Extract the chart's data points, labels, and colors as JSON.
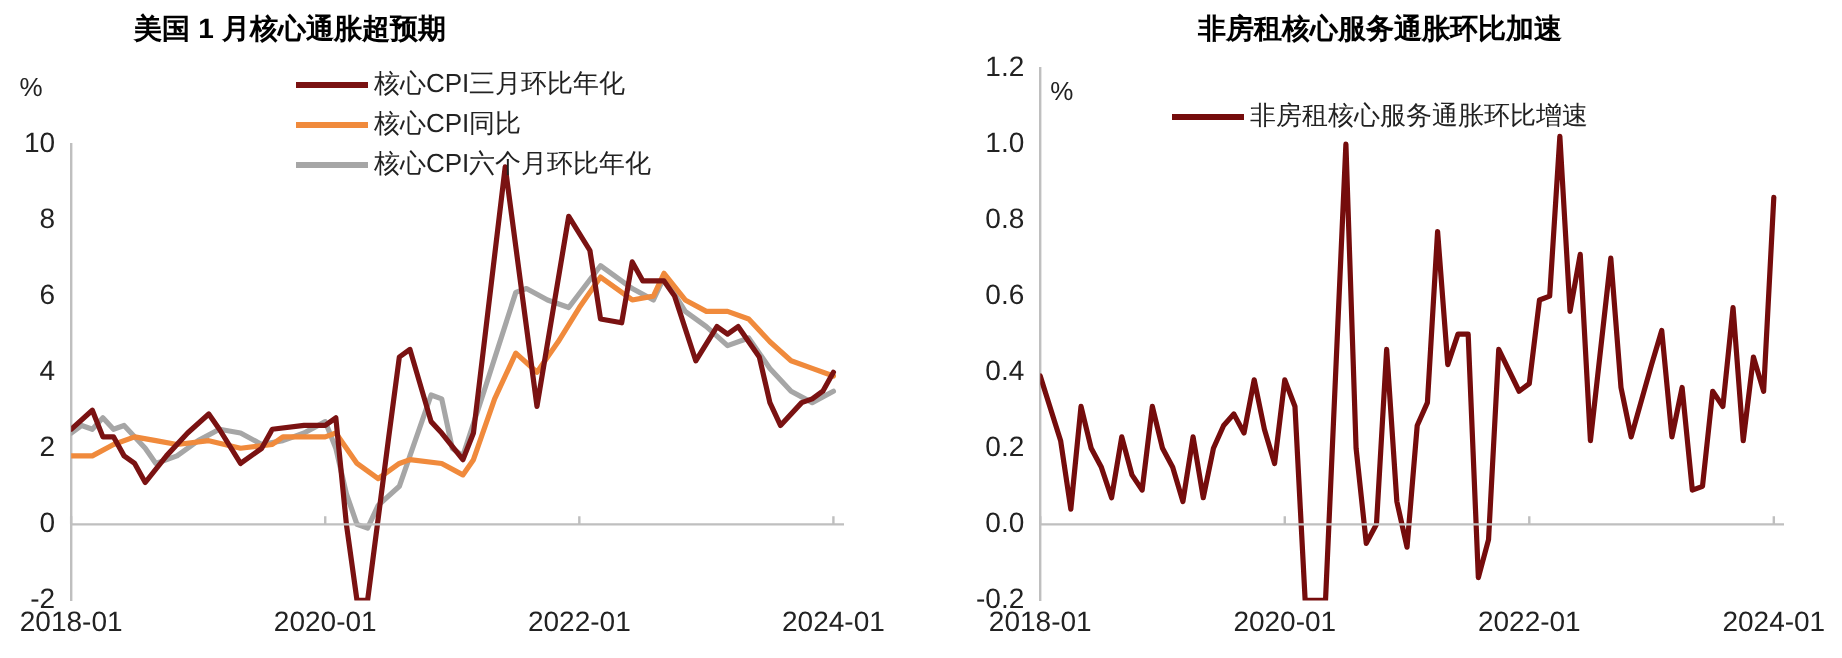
{
  "chart_data": [
    {
      "type": "line",
      "title": "美国 1 月核心通胀超预期",
      "ylabel": "%",
      "legend": "top right",
      "grid": false,
      "xlim": [
        "2018-01",
        "2024-02"
      ],
      "xticks": [
        "2018-01",
        "2020-01",
        "2022-01",
        "2024-01"
      ],
      "ylim": [
        -2,
        10
      ],
      "yticks": [
        -2,
        0,
        2,
        4,
        6,
        8,
        10
      ],
      "ref_lines": [
        {
          "axis": "y",
          "value": 0,
          "color": "#bfbfbf"
        }
      ],
      "series": [
        {
          "name": "核心CPI三月环比年化",
          "color": "#7a1212",
          "x": [
            "2018-01",
            "2018-03",
            "2018-04",
            "2018-05",
            "2018-06",
            "2018-07",
            "2018-08",
            "2018-10",
            "2018-12",
            "2019-02",
            "2019-03",
            "2019-05",
            "2019-07",
            "2019-08",
            "2019-11",
            "2020-01",
            "2020-02",
            "2020-03",
            "2020-04",
            "2020-05",
            "2020-07",
            "2020-08",
            "2020-09",
            "2020-11",
            "2020-12",
            "2021-02",
            "2021-03",
            "2021-06",
            "2021-09",
            "2021-12",
            "2022-02",
            "2022-03",
            "2022-05",
            "2022-06",
            "2022-07",
            "2022-09",
            "2022-10",
            "2022-12",
            "2023-02",
            "2023-03",
            "2023-04",
            "2023-06",
            "2023-07",
            "2023-08",
            "2023-10",
            "2023-11",
            "2023-12",
            "2024-01"
          ],
          "values": [
            2.5,
            3.0,
            2.3,
            2.3,
            1.8,
            1.6,
            1.1,
            1.8,
            2.4,
            2.9,
            2.5,
            1.6,
            2.0,
            2.5,
            2.6,
            2.6,
            2.8,
            0.0,
            -2.0,
            -2.0,
            2.3,
            4.4,
            4.6,
            2.7,
            2.4,
            1.7,
            2.4,
            9.4,
            3.1,
            8.1,
            7.2,
            5.4,
            5.3,
            6.9,
            6.4,
            6.4,
            6.0,
            4.3,
            5.2,
            5.0,
            5.2,
            4.4,
            3.2,
            2.6,
            3.2,
            3.3,
            3.5,
            4.0
          ]
        },
        {
          "name": "核心CPI同比",
          "color": "#f08a3c",
          "x": [
            "2018-01",
            "2018-03",
            "2018-05",
            "2018-07",
            "2018-09",
            "2018-11",
            "2019-02",
            "2019-05",
            "2019-08",
            "2019-09",
            "2020-01",
            "2020-02",
            "2020-04",
            "2020-06",
            "2020-08",
            "2020-09",
            "2020-12",
            "2021-02",
            "2021-03",
            "2021-05",
            "2021-07",
            "2021-09",
            "2021-11",
            "2022-01",
            "2022-03",
            "2022-06",
            "2022-08",
            "2022-09",
            "2022-11",
            "2023-01",
            "2023-03",
            "2023-05",
            "2023-07",
            "2023-09",
            "2023-11",
            "2024-01"
          ],
          "values": [
            1.8,
            1.8,
            2.1,
            2.3,
            2.2,
            2.1,
            2.2,
            2.0,
            2.1,
            2.3,
            2.3,
            2.4,
            1.6,
            1.2,
            1.6,
            1.7,
            1.6,
            1.3,
            1.7,
            3.3,
            4.5,
            4.0,
            4.8,
            5.7,
            6.5,
            5.9,
            6.0,
            6.6,
            5.9,
            5.6,
            5.6,
            5.4,
            4.8,
            4.3,
            4.1,
            3.9
          ]
        },
        {
          "name": "核心CPI六个月环比年化",
          "color": "#a6a6a6",
          "x": [
            "2018-01",
            "2018-02",
            "2018-03",
            "2018-04",
            "2018-05",
            "2018-06",
            "2018-08",
            "2018-09",
            "2018-11",
            "2019-01",
            "2019-03",
            "2019-05",
            "2019-07",
            "2019-09",
            "2019-11",
            "2020-01",
            "2020-02",
            "2020-03",
            "2020-04",
            "2020-05",
            "2020-06",
            "2020-08",
            "2020-09",
            "2020-11",
            "2020-12",
            "2021-01",
            "2021-02",
            "2021-04",
            "2021-07",
            "2021-08",
            "2021-10",
            "2021-12",
            "2022-03",
            "2022-06",
            "2022-08",
            "2022-09",
            "2022-11",
            "2023-01",
            "2023-03",
            "2023-05",
            "2023-07",
            "2023-09",
            "2023-11",
            "2024-01"
          ],
          "values": [
            2.4,
            2.6,
            2.5,
            2.8,
            2.5,
            2.6,
            2.0,
            1.6,
            1.8,
            2.2,
            2.5,
            2.4,
            2.1,
            2.2,
            2.4,
            2.7,
            2.0,
            0.8,
            0.0,
            -0.1,
            0.5,
            1.0,
            1.8,
            3.4,
            3.3,
            2.0,
            1.8,
            3.5,
            6.1,
            6.2,
            5.9,
            5.7,
            6.8,
            6.2,
            5.9,
            6.5,
            5.6,
            5.2,
            4.7,
            4.9,
            4.1,
            3.5,
            3.2,
            3.5
          ]
        }
      ]
    },
    {
      "type": "line",
      "title": "非房租核心服务通胀环比加速",
      "ylabel": "%",
      "legend": "top",
      "grid": false,
      "xlim": [
        "2018-01",
        "2024-02"
      ],
      "xticks": [
        "2018-01",
        "2020-01",
        "2022-01",
        "2024-01"
      ],
      "ylim": [
        -0.2,
        1.2
      ],
      "yticks": [
        {
          "value": -0.2,
          "label": "-0.2"
        },
        {
          "value": 0,
          "label": "0.0"
        },
        {
          "value": 0.2,
          "label": "0.2"
        },
        {
          "value": 0.4,
          "label": "0.4"
        },
        {
          "value": 0.6,
          "label": "0.6"
        },
        {
          "value": 0.8,
          "label": "0.8"
        },
        {
          "value": 1,
          "label": "1.0"
        },
        {
          "value": 1.2,
          "label": "1.2"
        }
      ],
      "ref_lines": [
        {
          "axis": "y",
          "value": 0,
          "color": "#bfbfbf"
        }
      ],
      "series": [
        {
          "name": "非房租核心服务通胀环比增速",
          "color": "#750c0c",
          "x": [
            "2018-01",
            "2018-03",
            "2018-04",
            "2018-05",
            "2018-06",
            "2018-07",
            "2018-08",
            "2018-09",
            "2018-10",
            "2018-11",
            "2018-12",
            "2019-01",
            "2019-02",
            "2019-03",
            "2019-04",
            "2019-05",
            "2019-06",
            "2019-07",
            "2019-08",
            "2019-09",
            "2019-10",
            "2019-11",
            "2019-12",
            "2020-01",
            "2020-02",
            "2020-03",
            "2020-05",
            "2020-07",
            "2020-08",
            "2020-09",
            "2020-10",
            "2020-11",
            "2020-12",
            "2021-01",
            "2021-02",
            "2021-03",
            "2021-04",
            "2021-05",
            "2021-06",
            "2021-07",
            "2021-08",
            "2021-09",
            "2021-10",
            "2021-12",
            "2022-01",
            "2022-02",
            "2022-03",
            "2022-04",
            "2022-05",
            "2022-06",
            "2022-07",
            "2022-09",
            "2022-10",
            "2022-11",
            "2023-01",
            "2023-02",
            "2023-03",
            "2023-04",
            "2023-05",
            "2023-06",
            "2023-07",
            "2023-08",
            "2023-09",
            "2023-10",
            "2023-11",
            "2023-12",
            "2024-01"
          ],
          "values": [
            0.39,
            0.22,
            0.04,
            0.31,
            0.2,
            0.15,
            0.07,
            0.23,
            0.13,
            0.09,
            0.31,
            0.2,
            0.15,
            0.06,
            0.23,
            0.07,
            0.2,
            0.26,
            0.29,
            0.24,
            0.38,
            0.25,
            0.16,
            0.38,
            0.31,
            -0.2,
            -0.2,
            1.0,
            0.2,
            -0.05,
            0.0,
            0.46,
            0.06,
            -0.06,
            0.26,
            0.32,
            0.77,
            0.42,
            0.5,
            0.5,
            -0.14,
            -0.04,
            0.46,
            0.35,
            0.37,
            0.59,
            0.6,
            1.02,
            0.56,
            0.71,
            0.22,
            0.7,
            0.36,
            0.23,
            0.42,
            0.51,
            0.23,
            0.36,
            0.09,
            0.1,
            0.35,
            0.31,
            0.57,
            0.22,
            0.44,
            0.35,
            0.86
          ]
        }
      ]
    }
  ]
}
